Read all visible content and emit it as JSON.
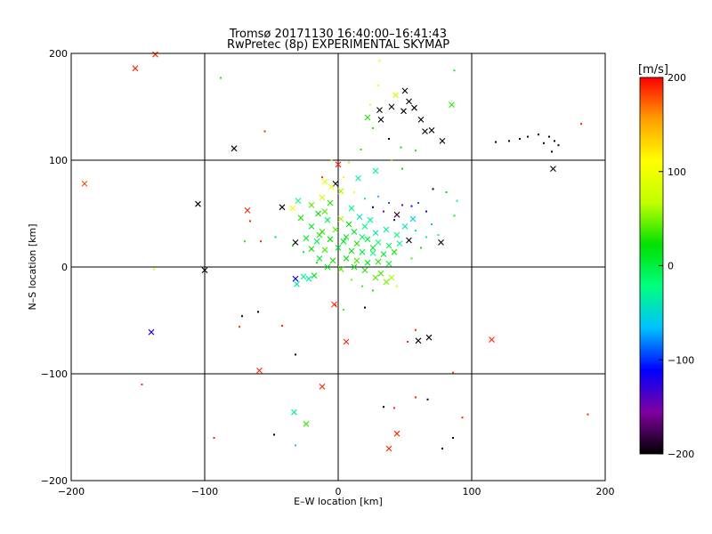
{
  "chart_data": {
    "type": "scatter",
    "title": "Tromsø 20171130 16:40:00–16:41:43",
    "subtitle": "RwPretec (8p) EXPERIMENTAL SKYMAP",
    "xlabel": "E–W location [km]",
    "ylabel": "N–S location [km]",
    "xlim": [
      -200,
      200
    ],
    "ylim": [
      -200,
      200
    ],
    "xticks": [
      -200,
      -100,
      0,
      100,
      200
    ],
    "yticks": [
      -200,
      -100,
      0,
      100,
      200
    ],
    "grid": true,
    "grid_lines": [
      -100,
      0,
      100
    ],
    "colorbar": {
      "unit": "[m/s]",
      "range": [
        -200,
        200
      ],
      "ticks": [
        200,
        100,
        0,
        -100,
        -200
      ],
      "placement": "right",
      "colors": [
        "#000000",
        "#8000a0",
        "#0000ff",
        "#00c0ff",
        "#00ff80",
        "#00e000",
        "#c0ff00",
        "#ffff00",
        "#ffa000",
        "#ff0000"
      ]
    },
    "markers": {
      "large": "x",
      "small": "dot"
    },
    "points": [
      {
        "x": -152,
        "y": 186,
        "v": 190,
        "m": "x"
      },
      {
        "x": -137,
        "y": 199,
        "v": 190,
        "m": "x"
      },
      {
        "x": -190,
        "y": 78,
        "v": 180,
        "m": "x"
      },
      {
        "x": -78,
        "y": 111,
        "v": -200,
        "m": "x"
      },
      {
        "x": -105,
        "y": 59,
        "v": -200,
        "m": "x"
      },
      {
        "x": -68,
        "y": 53,
        "v": 190,
        "m": "x"
      },
      {
        "x": -100,
        "y": -3,
        "v": -200,
        "m": "x"
      },
      {
        "x": -140,
        "y": -61,
        "v": -120,
        "m": "x"
      },
      {
        "x": -59,
        "y": -97,
        "v": 190,
        "m": "x"
      },
      {
        "x": -12,
        "y": -112,
        "v": 190,
        "m": "x"
      },
      {
        "x": -33,
        "y": -136,
        "v": -40,
        "m": "x"
      },
      {
        "x": -24,
        "y": -147,
        "v": 30,
        "m": "x"
      },
      {
        "x": 38,
        "y": -170,
        "v": 190,
        "m": "x"
      },
      {
        "x": 44,
        "y": -156,
        "v": 190,
        "m": "x"
      },
      {
        "x": 115,
        "y": -68,
        "v": 190,
        "m": "x"
      },
      {
        "x": 68,
        "y": -66,
        "v": -200,
        "m": "x"
      },
      {
        "x": 60,
        "y": -69,
        "v": -200,
        "m": "x"
      },
      {
        "x": 6,
        "y": -70,
        "v": 190,
        "m": "x"
      },
      {
        "x": -3,
        "y": -35,
        "v": 190,
        "m": "x"
      },
      {
        "x": -32,
        "y": -11,
        "v": -120,
        "m": "x"
      },
      {
        "x": -31,
        "y": -16,
        "v": -40,
        "m": "x"
      },
      {
        "x": -26,
        "y": -9,
        "v": -30,
        "m": "x"
      },
      {
        "x": -22,
        "y": -11,
        "v": -40,
        "m": "x"
      },
      {
        "x": 50,
        "y": 165,
        "v": -200,
        "m": "x"
      },
      {
        "x": 53,
        "y": 155,
        "v": -200,
        "m": "x"
      },
      {
        "x": 57,
        "y": 149,
        "v": -200,
        "m": "x"
      },
      {
        "x": 49,
        "y": 146,
        "v": -200,
        "m": "x"
      },
      {
        "x": 40,
        "y": 150,
        "v": -200,
        "m": "x"
      },
      {
        "x": 31,
        "y": 147,
        "v": -200,
        "m": "x"
      },
      {
        "x": 32,
        "y": 138,
        "v": -200,
        "m": "x"
      },
      {
        "x": 62,
        "y": 138,
        "v": -200,
        "m": "x"
      },
      {
        "x": 65,
        "y": 127,
        "v": -200,
        "m": "x"
      },
      {
        "x": 70,
        "y": 128,
        "v": -200,
        "m": "x"
      },
      {
        "x": 78,
        "y": 118,
        "v": -200,
        "m": "x"
      },
      {
        "x": 22,
        "y": 140,
        "v": 30,
        "m": "x"
      },
      {
        "x": 85,
        "y": 152,
        "v": 30,
        "m": "x"
      },
      {
        "x": 43,
        "y": 161,
        "v": 70,
        "m": "x"
      },
      {
        "x": 161,
        "y": 92,
        "v": -200,
        "m": "x"
      },
      {
        "x": -42,
        "y": 56,
        "v": -200,
        "m": "x"
      },
      {
        "x": -32,
        "y": 23,
        "v": -200,
        "m": "x"
      },
      {
        "x": 77,
        "y": 23,
        "v": -200,
        "m": "x"
      },
      {
        "x": 53,
        "y": 25,
        "v": -200,
        "m": "x"
      },
      {
        "x": 44,
        "y": 49,
        "v": -180,
        "m": "x"
      },
      {
        "x": 0,
        "y": 96,
        "v": 190,
        "m": "x"
      },
      {
        "x": -2,
        "y": 78,
        "v": -200,
        "m": "x"
      },
      {
        "x": 28,
        "y": 90,
        "v": -40,
        "m": "x"
      },
      {
        "x": 15,
        "y": 83,
        "v": -30,
        "m": "x"
      },
      {
        "x": -10,
        "y": 80,
        "v": 90,
        "m": "x"
      },
      {
        "x": -5,
        "y": 75,
        "v": 100,
        "m": "x"
      },
      {
        "x": 2,
        "y": 71,
        "v": 60,
        "m": "x"
      },
      {
        "x": -12,
        "y": 65,
        "v": 70,
        "m": "x"
      },
      {
        "x": -30,
        "y": 62,
        "v": -20,
        "m": "x"
      },
      {
        "x": -34,
        "y": 55,
        "v": 100,
        "m": "x"
      },
      {
        "x": -20,
        "y": 58,
        "v": 40,
        "m": "x"
      },
      {
        "x": -15,
        "y": 50,
        "v": 20,
        "m": "x"
      },
      {
        "x": -28,
        "y": 46,
        "v": 30,
        "m": "x"
      },
      {
        "x": -8,
        "y": 44,
        "v": -10,
        "m": "x"
      },
      {
        "x": 2,
        "y": 45,
        "v": 60,
        "m": "x"
      },
      {
        "x": 8,
        "y": 40,
        "v": 20,
        "m": "x"
      },
      {
        "x": -20,
        "y": 38,
        "v": 10,
        "m": "x"
      },
      {
        "x": -12,
        "y": 33,
        "v": 30,
        "m": "x"
      },
      {
        "x": -2,
        "y": 35,
        "v": 40,
        "m": "x"
      },
      {
        "x": 12,
        "y": 33,
        "v": 10,
        "m": "x"
      },
      {
        "x": 20,
        "y": 38,
        "v": -20,
        "m": "x"
      },
      {
        "x": 28,
        "y": 32,
        "v": -40,
        "m": "x"
      },
      {
        "x": 36,
        "y": 35,
        "v": -30,
        "m": "x"
      },
      {
        "x": 44,
        "y": 30,
        "v": -20,
        "m": "x"
      },
      {
        "x": 50,
        "y": 38,
        "v": -40,
        "m": "x"
      },
      {
        "x": 56,
        "y": 45,
        "v": -60,
        "m": "x"
      },
      {
        "x": -24,
        "y": 27,
        "v": 10,
        "m": "x"
      },
      {
        "x": -16,
        "y": 24,
        "v": -10,
        "m": "x"
      },
      {
        "x": -6,
        "y": 26,
        "v": 20,
        "m": "x"
      },
      {
        "x": 4,
        "y": 24,
        "v": 10,
        "m": "x"
      },
      {
        "x": 14,
        "y": 22,
        "v": 30,
        "m": "x"
      },
      {
        "x": 22,
        "y": 26,
        "v": 0,
        "m": "x"
      },
      {
        "x": 30,
        "y": 23,
        "v": -20,
        "m": "x"
      },
      {
        "x": 38,
        "y": 20,
        "v": -10,
        "m": "x"
      },
      {
        "x": 46,
        "y": 22,
        "v": -30,
        "m": "x"
      },
      {
        "x": -20,
        "y": 17,
        "v": 20,
        "m": "x"
      },
      {
        "x": -10,
        "y": 16,
        "v": 40,
        "m": "x"
      },
      {
        "x": 0,
        "y": 18,
        "v": 10,
        "m": "x"
      },
      {
        "x": 10,
        "y": 15,
        "v": 20,
        "m": "x"
      },
      {
        "x": 18,
        "y": 14,
        "v": 0,
        "m": "x"
      },
      {
        "x": 26,
        "y": 13,
        "v": -20,
        "m": "x"
      },
      {
        "x": 34,
        "y": 12,
        "v": 10,
        "m": "x"
      },
      {
        "x": 42,
        "y": 14,
        "v": 30,
        "m": "x"
      },
      {
        "x": -14,
        "y": 8,
        "v": 10,
        "m": "x"
      },
      {
        "x": -4,
        "y": 6,
        "v": 30,
        "m": "x"
      },
      {
        "x": 6,
        "y": 8,
        "v": 20,
        "m": "x"
      },
      {
        "x": 14,
        "y": 6,
        "v": 40,
        "m": "x"
      },
      {
        "x": 22,
        "y": 4,
        "v": 10,
        "m": "x"
      },
      {
        "x": 30,
        "y": 5,
        "v": 30,
        "m": "x"
      },
      {
        "x": 38,
        "y": 3,
        "v": 0,
        "m": "x"
      },
      {
        "x": -8,
        "y": 0,
        "v": 20,
        "m": "x"
      },
      {
        "x": 2,
        "y": -2,
        "v": 40,
        "m": "x"
      },
      {
        "x": 12,
        "y": 0,
        "v": 20,
        "m": "x"
      },
      {
        "x": 20,
        "y": -3,
        "v": 30,
        "m": "x"
      },
      {
        "x": 32,
        "y": -6,
        "v": 40,
        "m": "x"
      },
      {
        "x": 40,
        "y": -10,
        "v": 60,
        "m": "x"
      },
      {
        "x": 36,
        "y": -14,
        "v": 50,
        "m": "x"
      },
      {
        "x": -10,
        "y": 52,
        "v": 40,
        "m": "x"
      },
      {
        "x": -6,
        "y": 60,
        "v": 30,
        "m": "x"
      },
      {
        "x": 10,
        "y": 55,
        "v": -20,
        "m": "x"
      },
      {
        "x": 16,
        "y": 47,
        "v": -40,
        "m": "x"
      },
      {
        "x": 24,
        "y": 44,
        "v": -30,
        "m": "x"
      },
      {
        "x": 6,
        "y": 28,
        "v": 10,
        "m": "x"
      },
      {
        "x": -14,
        "y": 30,
        "v": 30,
        "m": "x"
      },
      {
        "x": 26,
        "y": 18,
        "v": 10,
        "m": "x"
      },
      {
        "x": 18,
        "y": 28,
        "v": -10,
        "m": "x"
      },
      {
        "x": -18,
        "y": -8,
        "v": 20,
        "m": "x"
      },
      {
        "x": 28,
        "y": -10,
        "v": 40,
        "m": "x"
      },
      {
        "x": -138,
        "y": -2,
        "v": 120,
        "m": "dot"
      },
      {
        "x": -88,
        "y": 177,
        "v": 30,
        "m": "dot"
      },
      {
        "x": -55,
        "y": 127,
        "v": 190,
        "m": "dot"
      },
      {
        "x": 87,
        "y": 184,
        "v": 0,
        "m": "dot"
      },
      {
        "x": 31,
        "y": 193,
        "v": 120,
        "m": "dot"
      },
      {
        "x": 182,
        "y": 134,
        "v": 190,
        "m": "dot"
      },
      {
        "x": 118,
        "y": 117,
        "v": -200,
        "m": "dot"
      },
      {
        "x": 128,
        "y": 118,
        "v": -200,
        "m": "dot"
      },
      {
        "x": 136,
        "y": 120,
        "v": -200,
        "m": "dot"
      },
      {
        "x": 142,
        "y": 122,
        "v": -200,
        "m": "dot"
      },
      {
        "x": 150,
        "y": 124,
        "v": -200,
        "m": "dot"
      },
      {
        "x": 158,
        "y": 122,
        "v": -200,
        "m": "dot"
      },
      {
        "x": 162,
        "y": 118,
        "v": -200,
        "m": "dot"
      },
      {
        "x": 165,
        "y": 114,
        "v": -200,
        "m": "dot"
      },
      {
        "x": 160,
        "y": 108,
        "v": -200,
        "m": "dot"
      },
      {
        "x": 154,
        "y": 116,
        "v": -200,
        "m": "dot"
      },
      {
        "x": 38,
        "y": 120,
        "v": -200,
        "m": "dot"
      },
      {
        "x": 47,
        "y": 112,
        "v": 20,
        "m": "dot"
      },
      {
        "x": 58,
        "y": 109,
        "v": 10,
        "m": "dot"
      },
      {
        "x": -12,
        "y": 84,
        "v": 190,
        "m": "dot"
      },
      {
        "x": -66,
        "y": 43,
        "v": 190,
        "m": "dot"
      },
      {
        "x": -58,
        "y": 24,
        "v": 190,
        "m": "dot"
      },
      {
        "x": -70,
        "y": 24,
        "v": 30,
        "m": "dot"
      },
      {
        "x": -47,
        "y": 28,
        "v": 10,
        "m": "dot"
      },
      {
        "x": 71,
        "y": 73,
        "v": -200,
        "m": "dot"
      },
      {
        "x": 81,
        "y": 70,
        "v": 20,
        "m": "dot"
      },
      {
        "x": 89,
        "y": 62,
        "v": -20,
        "m": "dot"
      },
      {
        "x": 87,
        "y": 48,
        "v": 10,
        "m": "dot"
      },
      {
        "x": 70,
        "y": 40,
        "v": -60,
        "m": "dot"
      },
      {
        "x": 66,
        "y": 52,
        "v": -120,
        "m": "dot"
      },
      {
        "x": 55,
        "y": 57,
        "v": -120,
        "m": "dot"
      },
      {
        "x": 48,
        "y": 58,
        "v": -150,
        "m": "dot"
      },
      {
        "x": 60,
        "y": 60,
        "v": -90,
        "m": "dot"
      },
      {
        "x": 75,
        "y": 30,
        "v": -30,
        "m": "dot"
      },
      {
        "x": 62,
        "y": 18,
        "v": 20,
        "m": "dot"
      },
      {
        "x": 55,
        "y": 8,
        "v": 40,
        "m": "dot"
      },
      {
        "x": -72,
        "y": -46,
        "v": -200,
        "m": "dot"
      },
      {
        "x": -60,
        "y": -42,
        "v": -200,
        "m": "dot"
      },
      {
        "x": -74,
        "y": -56,
        "v": 190,
        "m": "dot"
      },
      {
        "x": -42,
        "y": -55,
        "v": 190,
        "m": "dot"
      },
      {
        "x": -32,
        "y": -82,
        "v": -200,
        "m": "dot"
      },
      {
        "x": 20,
        "y": -38,
        "v": -200,
        "m": "dot"
      },
      {
        "x": 4,
        "y": -40,
        "v": 40,
        "m": "dot"
      },
      {
        "x": -2,
        "y": -36,
        "v": 190,
        "m": "dot"
      },
      {
        "x": 58,
        "y": -59,
        "v": 190,
        "m": "dot"
      },
      {
        "x": 52,
        "y": -70,
        "v": 190,
        "m": "dot"
      },
      {
        "x": 86,
        "y": -99,
        "v": 190,
        "m": "dot"
      },
      {
        "x": -147,
        "y": -110,
        "v": 190,
        "m": "dot"
      },
      {
        "x": -93,
        "y": -160,
        "v": 190,
        "m": "dot"
      },
      {
        "x": -48,
        "y": -157,
        "v": -200,
        "m": "dot"
      },
      {
        "x": -32,
        "y": -167,
        "v": -60,
        "m": "dot"
      },
      {
        "x": 34,
        "y": -131,
        "v": -200,
        "m": "dot"
      },
      {
        "x": 42,
        "y": -132,
        "v": 190,
        "m": "dot"
      },
      {
        "x": 58,
        "y": -122,
        "v": 190,
        "m": "dot"
      },
      {
        "x": 67,
        "y": -124,
        "v": -200,
        "m": "dot"
      },
      {
        "x": 78,
        "y": -170,
        "v": -200,
        "m": "dot"
      },
      {
        "x": 86,
        "y": -160,
        "v": -200,
        "m": "dot"
      },
      {
        "x": 93,
        "y": -141,
        "v": 190,
        "m": "dot"
      },
      {
        "x": 187,
        "y": -138,
        "v": 190,
        "m": "dot"
      },
      {
        "x": 24,
        "y": 152,
        "v": 90,
        "m": "dot"
      },
      {
        "x": 30,
        "y": 170,
        "v": 110,
        "m": "dot"
      },
      {
        "x": 26,
        "y": 130,
        "v": 30,
        "m": "dot"
      },
      {
        "x": 48,
        "y": 92,
        "v": 20,
        "m": "dot"
      },
      {
        "x": 40,
        "y": 100,
        "v": 50,
        "m": "dot"
      },
      {
        "x": -5,
        "y": 100,
        "v": 120,
        "m": "dot"
      },
      {
        "x": 8,
        "y": 98,
        "v": 60,
        "m": "dot"
      },
      {
        "x": 17,
        "y": 110,
        "v": 30,
        "m": "dot"
      },
      {
        "x": 30,
        "y": 66,
        "v": -60,
        "m": "dot"
      },
      {
        "x": 38,
        "y": 60,
        "v": -90,
        "m": "dot"
      },
      {
        "x": 34,
        "y": 52,
        "v": -150,
        "m": "dot"
      },
      {
        "x": 42,
        "y": 44,
        "v": -180,
        "m": "dot"
      },
      {
        "x": 26,
        "y": 56,
        "v": -200,
        "m": "dot"
      },
      {
        "x": 20,
        "y": 64,
        "v": -40,
        "m": "dot"
      },
      {
        "x": 58,
        "y": 34,
        "v": -50,
        "m": "dot"
      },
      {
        "x": 66,
        "y": 28,
        "v": -30,
        "m": "dot"
      },
      {
        "x": 10,
        "y": -12,
        "v": 50,
        "m": "dot"
      },
      {
        "x": 18,
        "y": -18,
        "v": 40,
        "m": "dot"
      },
      {
        "x": 26,
        "y": -22,
        "v": 30,
        "m": "dot"
      },
      {
        "x": 44,
        "y": -18,
        "v": 80,
        "m": "dot"
      },
      {
        "x": -16,
        "y": 4,
        "v": 30,
        "m": "dot"
      },
      {
        "x": -26,
        "y": 14,
        "v": 10,
        "m": "dot"
      },
      {
        "x": -34,
        "y": 20,
        "v": 20,
        "m": "dot"
      },
      {
        "x": 12,
        "y": 70,
        "v": 100,
        "m": "dot"
      },
      {
        "x": 4,
        "y": 84,
        "v": 90,
        "m": "dot"
      }
    ]
  }
}
